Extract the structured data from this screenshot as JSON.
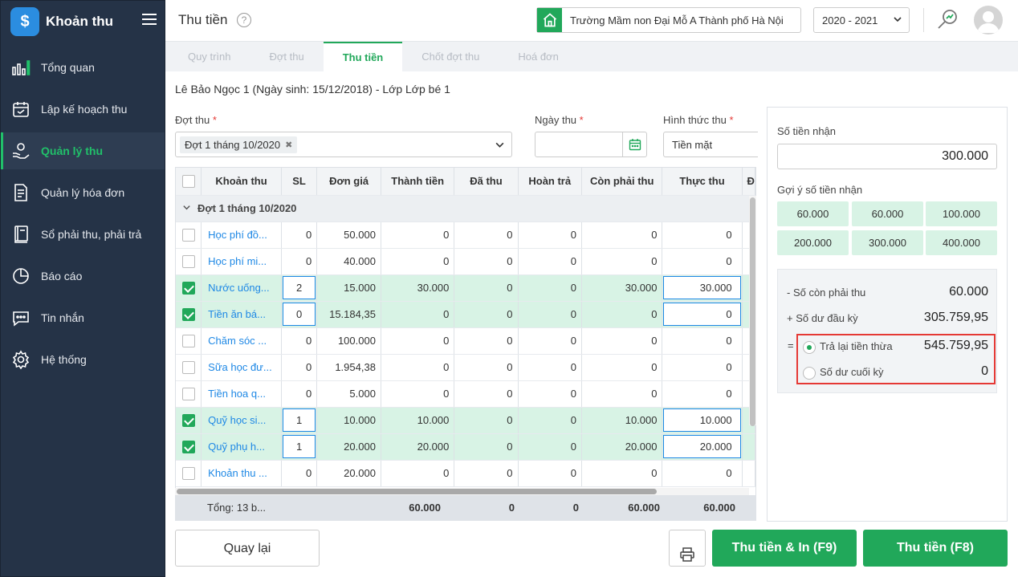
{
  "app": {
    "title": "Khoản thu",
    "logo_glyph": "$"
  },
  "sidebar": {
    "items": [
      {
        "label": "Tổng quan",
        "icon": "bar-chart-icon"
      },
      {
        "label": "Lập kế hoạch thu",
        "icon": "calendar-plan-icon"
      },
      {
        "label": "Quản lý thu",
        "icon": "hand-coin-icon",
        "active": true
      },
      {
        "label": "Quản lý hóa đơn",
        "icon": "invoice-icon"
      },
      {
        "label": "Sổ phải thu, phải trả",
        "icon": "ledger-book-icon"
      },
      {
        "label": "Báo cáo",
        "icon": "pie-chart-icon"
      },
      {
        "label": "Tin nhắn",
        "icon": "message-icon"
      },
      {
        "label": "Hệ thống",
        "icon": "gear-icon"
      }
    ]
  },
  "header": {
    "page_title": "Thu tiền",
    "help": "?",
    "school": "Trường Mầm non Đại Mỗ A Thành phố Hà Nội",
    "school_year": "2020 - 2021"
  },
  "tabs": [
    {
      "label": "Quy trình"
    },
    {
      "label": "Đợt thu"
    },
    {
      "label": "Thu tiền",
      "active": true
    },
    {
      "label": "Chốt đợt thu"
    },
    {
      "label": "Hoá đơn"
    }
  ],
  "student": "Lê Bảo Ngọc 1 (Ngày sinh: 15/12/2018) - Lớp Lớp bé 1",
  "form": {
    "dot_thu_label": "Đợt thu",
    "dot_thu_value": "Đợt 1 tháng 10/2020",
    "ngay_thu_label": "Ngày thu",
    "ngay_thu_value": "",
    "hinh_thuc_label": "Hình thức thu",
    "hinh_thuc_value": "Tiền mặt",
    "required_mark": "*"
  },
  "table": {
    "columns": [
      "Khoản thu",
      "SL",
      "Đơn giá",
      "Thành tiền",
      "Đã thu",
      "Hoàn trả",
      "Còn phải thu",
      "Thực thu",
      "Đ"
    ],
    "group_label": "Đợt 1 tháng 10/2020",
    "rows": [
      {
        "checked": false,
        "name": "Học phí đồ...",
        "sl": "0",
        "don_gia": "50.000",
        "thanh_tien": "0",
        "da_thu": "0",
        "hoan_tra": "0",
        "con_phai_thu": "0",
        "thuc_thu": "0",
        "edit": false
      },
      {
        "checked": false,
        "name": "Học phí mi...",
        "sl": "0",
        "don_gia": "40.000",
        "thanh_tien": "0",
        "da_thu": "0",
        "hoan_tra": "0",
        "con_phai_thu": "0",
        "thuc_thu": "0",
        "edit": false
      },
      {
        "checked": true,
        "name": "Nước uống...",
        "sl": "2",
        "don_gia": "15.000",
        "thanh_tien": "30.000",
        "da_thu": "0",
        "hoan_tra": "0",
        "con_phai_thu": "30.000",
        "thuc_thu": "30.000",
        "edit": true
      },
      {
        "checked": true,
        "name": "Tiền ăn bá...",
        "sl": "0",
        "don_gia": "15.184,35",
        "thanh_tien": "0",
        "da_thu": "0",
        "hoan_tra": "0",
        "con_phai_thu": "0",
        "thuc_thu": "0",
        "edit": true
      },
      {
        "checked": false,
        "name": "Chăm sóc ...",
        "sl": "0",
        "don_gia": "100.000",
        "thanh_tien": "0",
        "da_thu": "0",
        "hoan_tra": "0",
        "con_phai_thu": "0",
        "thuc_thu": "0",
        "edit": false
      },
      {
        "checked": false,
        "name": "Sữa học đư...",
        "sl": "0",
        "don_gia": "1.954,38",
        "thanh_tien": "0",
        "da_thu": "0",
        "hoan_tra": "0",
        "con_phai_thu": "0",
        "thuc_thu": "0",
        "edit": false
      },
      {
        "checked": false,
        "name": "Tiền hoa q...",
        "sl": "0",
        "don_gia": "5.000",
        "thanh_tien": "0",
        "da_thu": "0",
        "hoan_tra": "0",
        "con_phai_thu": "0",
        "thuc_thu": "0",
        "edit": false
      },
      {
        "checked": true,
        "name": "Quỹ học si...",
        "sl": "1",
        "don_gia": "10.000",
        "thanh_tien": "10.000",
        "da_thu": "0",
        "hoan_tra": "0",
        "con_phai_thu": "10.000",
        "thuc_thu": "10.000",
        "edit": true
      },
      {
        "checked": true,
        "name": "Quỹ phụ h...",
        "sl": "1",
        "don_gia": "20.000",
        "thanh_tien": "20.000",
        "da_thu": "0",
        "hoan_tra": "0",
        "con_phai_thu": "20.000",
        "thuc_thu": "20.000",
        "edit": true
      },
      {
        "checked": false,
        "name": "Khoản thu ...",
        "sl": "0",
        "don_gia": "20.000",
        "thanh_tien": "0",
        "da_thu": "0",
        "hoan_tra": "0",
        "con_phai_thu": "0",
        "thuc_thu": "0",
        "edit": false
      }
    ],
    "footer": {
      "label": "Tổng: 13 b...",
      "thanh_tien": "60.000",
      "da_thu": "0",
      "hoan_tra": "0",
      "con_phai_thu": "60.000",
      "thuc_thu": "60.000"
    }
  },
  "right": {
    "so_tien_nhan_label": "Số tiền nhận",
    "so_tien_nhan_value": "300.000",
    "goi_y_label": "Gợi ý số tiền nhận",
    "suggestions": [
      "60.000",
      "60.000",
      "100.000",
      "200.000",
      "300.000",
      "400.000"
    ],
    "summary": {
      "con_phai_thu_label": "- Số còn phải thu",
      "con_phai_thu_value": "60.000",
      "du_dau_ky_label": "+ Số dư đầu kỳ",
      "du_dau_ky_value": "305.759,95",
      "equals": "=",
      "tra_lai_label": "Trả lại tiền thừa",
      "tra_lai_value": "545.759,95",
      "du_cuoi_ky_label": "Số dư cuối kỳ",
      "du_cuoi_ky_value": "0"
    }
  },
  "buttons": {
    "back": "Quay lại",
    "pay_print": "Thu tiền & In (F9)",
    "pay": "Thu tiền (F8)"
  },
  "colors": {
    "accent": "#21a85a",
    "sidebar": "#253347",
    "link": "#1e88e5",
    "highlight_border": "#e53935"
  }
}
